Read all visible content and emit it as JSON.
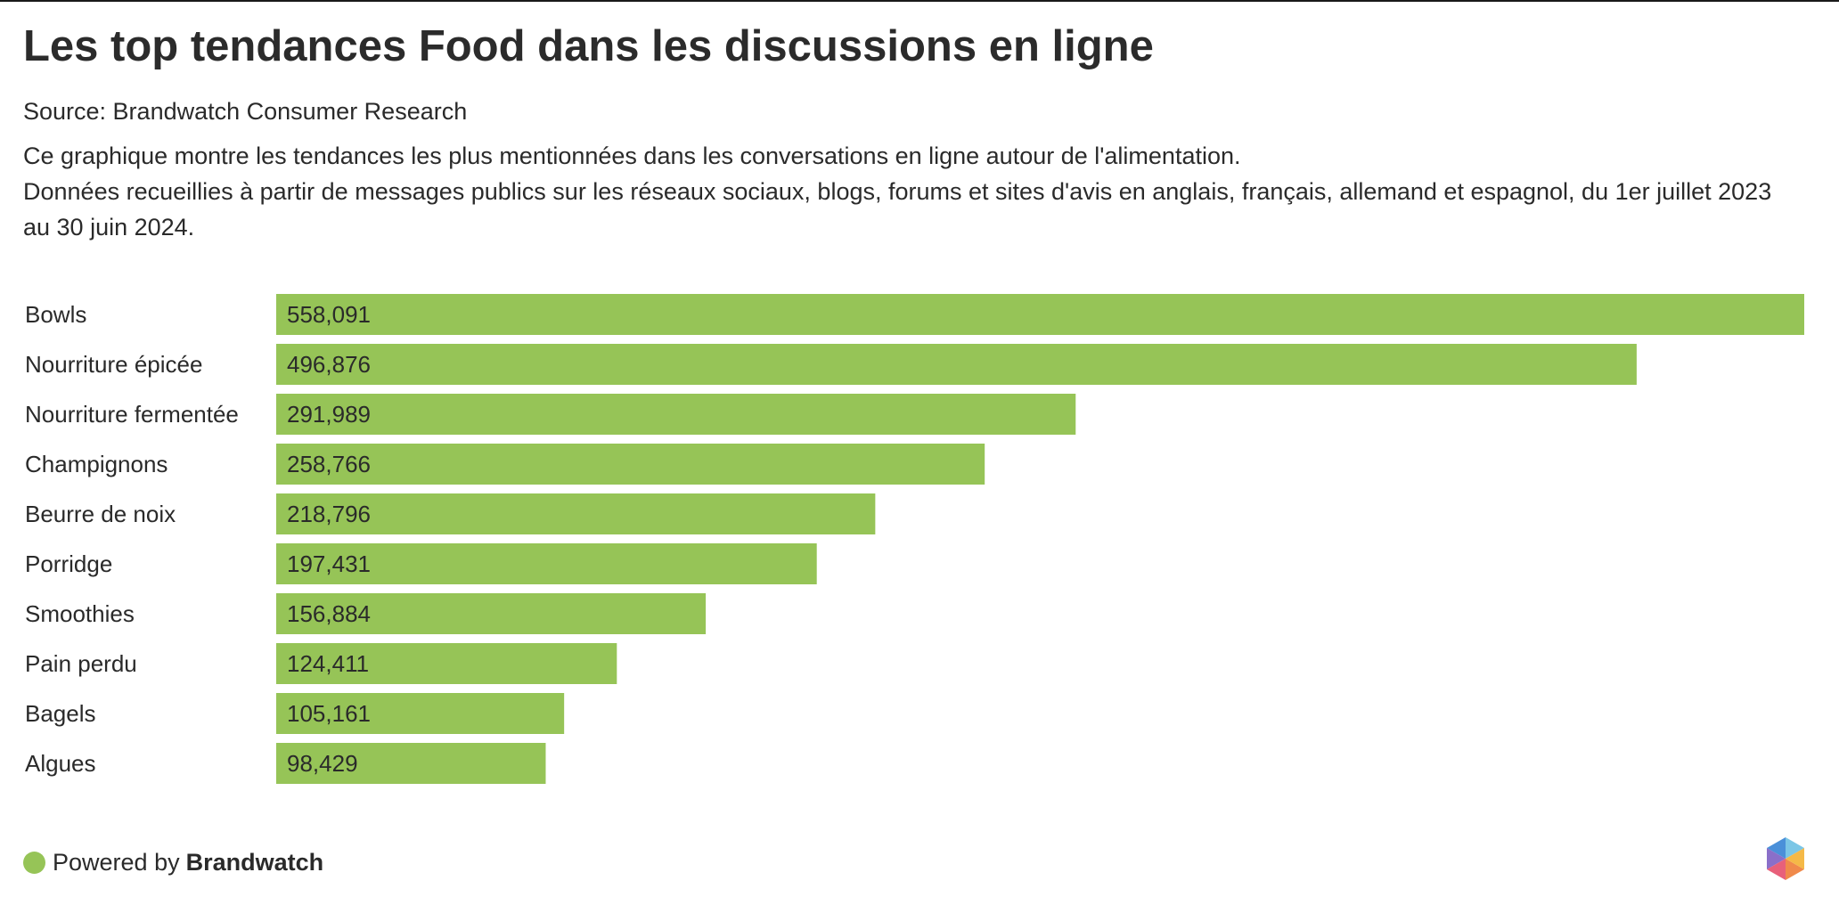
{
  "header": {
    "title": "Les top tendances Food dans les discussions en ligne",
    "source": "Source: Brandwatch Consumer Research",
    "description_line1": "Ce graphique montre les tendances les plus mentionnées dans les conversations en ligne autour de l'alimentation.",
    "description_line2": "Données recueillies à partir de messages publics sur les réseaux sociaux, blogs, forums et sites d'avis en anglais, français, allemand et espagnol, du 1er juillet 2023 au 30 juin 2024."
  },
  "chart_data": {
    "type": "bar",
    "orientation": "horizontal",
    "title": "Les top tendances Food dans les discussions en ligne",
    "categories": [
      "Bowls",
      "Nourriture épicée",
      "Nourriture fermentée",
      "Champignons",
      "Beurre de noix",
      "Porridge",
      "Smoothies",
      "Pain perdu",
      "Bagels",
      "Algues"
    ],
    "values": [
      558091,
      496876,
      291989,
      258766,
      218796,
      197431,
      156884,
      124411,
      105161,
      98429
    ],
    "value_labels": [
      "558,091",
      "496,876",
      "291,989",
      "258,766",
      "218,796",
      "197,431",
      "156,884",
      "124,411",
      "105,161",
      "98,429"
    ],
    "xlim": [
      0,
      558091
    ],
    "bar_color": "#96c457",
    "grid": false,
    "legend": "none"
  },
  "footer": {
    "powered_label": "Powered by",
    "brand_label": "Brandwatch",
    "dot_color": "#96c457"
  },
  "logo": {
    "icon": "brandwatch-hexagon-logo"
  }
}
